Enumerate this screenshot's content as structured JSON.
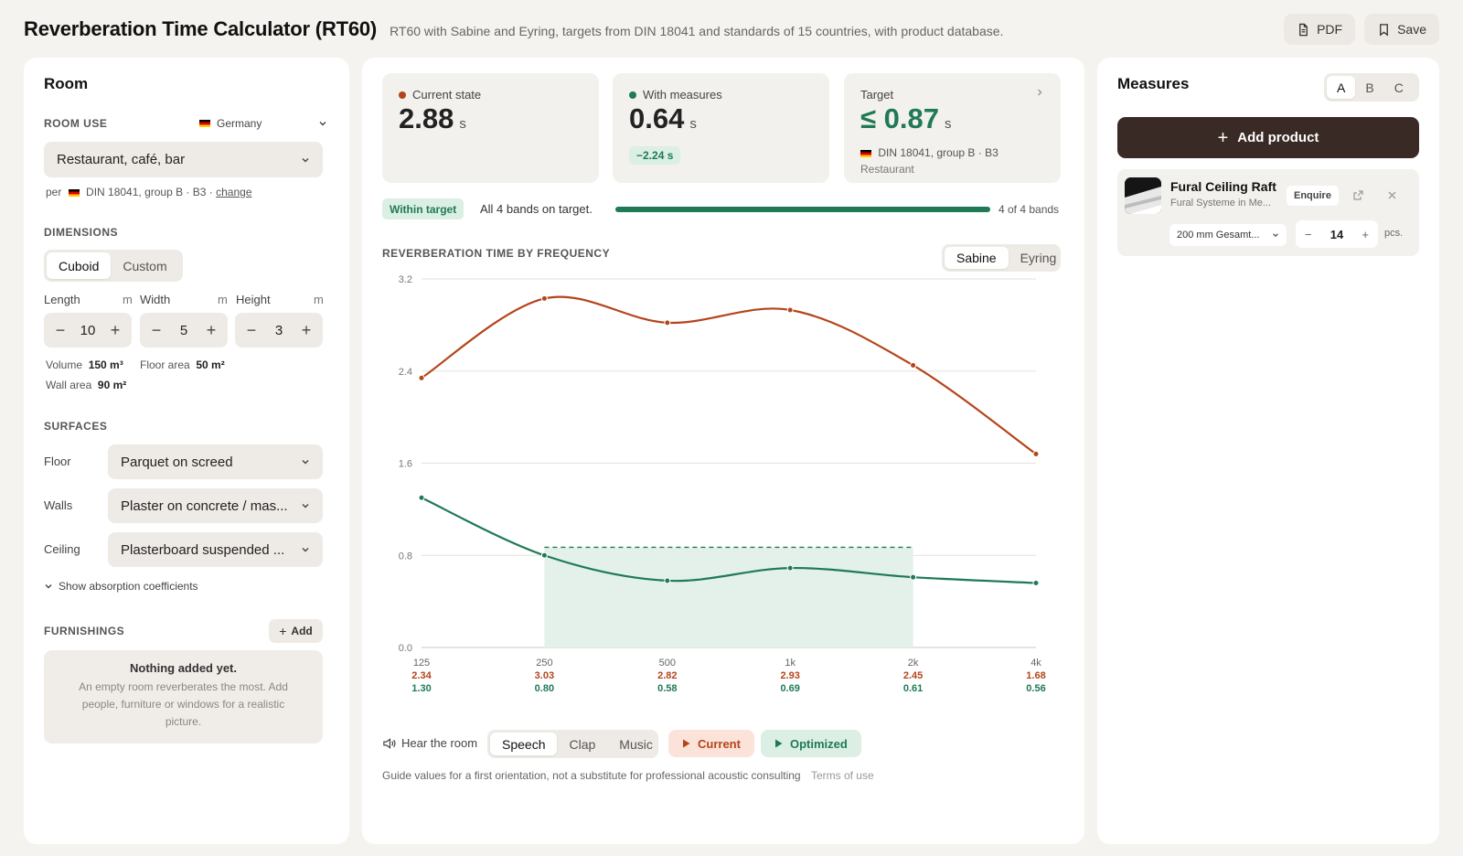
{
  "header": {
    "title": "Reverberation Time Calculator (RT60)",
    "subtitle": "RT60 with Sabine and Eyring, targets from DIN 18041 and standards of 15 countries, with product database.",
    "pdf_label": "PDF",
    "save_label": "Save"
  },
  "room": {
    "title": "Room",
    "room_use_label": "Room use",
    "country": "Germany",
    "use_value": "Restaurant, café, bar",
    "per_prefix": "per",
    "per_standard": "DIN 18041, group B · B3 ·",
    "change_link": "change",
    "dimensions_label": "Dimensions",
    "shape_options": [
      "Cuboid",
      "Custom"
    ],
    "length_label": "Length",
    "width_label": "Width",
    "height_label": "Height",
    "unit": "m",
    "length": "10",
    "width": "5",
    "height": "3",
    "volume_label": "Volume",
    "volume": "150 m³",
    "floor_area_label": "Floor area",
    "floor_area": "50 m²",
    "wall_area_label": "Wall area",
    "wall_area": "90 m²",
    "surfaces_label": "Surfaces",
    "floor_label": "Floor",
    "floor_value": "Parquet on screed",
    "walls_label": "Walls",
    "walls_value": "Plaster on concrete / mas...",
    "ceiling_label": "Ceiling",
    "ceiling_value": "Plasterboard suspended ...",
    "show_absorption": "Show absorption coefficients",
    "furnishings_label": "Furnishings",
    "add_label": "Add",
    "empty_title": "Nothing added yet.",
    "empty_text": "An empty room reverberates the most. Add people, furniture or windows for a realistic picture."
  },
  "summary": {
    "current_label": "Current state",
    "current_value": "2.88",
    "unit": "s",
    "measures_label": "With measures",
    "measures_value": "0.64",
    "delta": "−2.24 s",
    "target_label": "Target",
    "target_value": "≤ 0.87",
    "target_standard": "DIN 18041, group B · B3",
    "target_use": "Restaurant",
    "status_badge": "Within target",
    "status_text": "All 4 bands on target.",
    "bands_text": "4 of 4 bands",
    "bands_on_target": 4,
    "bands_total": 4
  },
  "chart_title": "Reverberation time by frequency",
  "method_options": [
    "Sabine",
    "Eyring"
  ],
  "chart_data": {
    "type": "line",
    "x": [
      "125",
      "250",
      "500",
      "1k",
      "2k",
      "4k"
    ],
    "series": [
      {
        "name": "Current",
        "values": [
          2.34,
          3.03,
          2.82,
          2.93,
          2.45,
          1.68
        ],
        "color": "#b5441a"
      },
      {
        "name": "Optimized",
        "values": [
          1.3,
          0.8,
          0.58,
          0.69,
          0.61,
          0.56
        ],
        "color": "#1f7a55"
      }
    ],
    "target_band": {
      "from": "250",
      "to": "2k",
      "max": 0.87
    },
    "yticks": [
      "3.2",
      "2.4",
      "1.6",
      "0.8",
      "0.0"
    ],
    "ylim": [
      0,
      3.2
    ],
    "grid": true
  },
  "labels_current": [
    "2.34",
    "3.03",
    "2.82",
    "2.93",
    "2.45",
    "1.68"
  ],
  "labels_optimized": [
    "1.30",
    "0.80",
    "0.58",
    "0.69",
    "0.61",
    "0.56"
  ],
  "audio": {
    "hear_label": "Hear the room",
    "sound_options": [
      "Speech",
      "Clap",
      "Music"
    ],
    "current_button": "Current",
    "optimized_button": "Optimized"
  },
  "footer": {
    "disclaimer": "Guide values for a first orientation, not a substitute for professional acoustic consulting",
    "terms": "Terms of use"
  },
  "measures": {
    "title": "Measures",
    "variants": [
      "A",
      "B",
      "C"
    ],
    "add_product": "Add product",
    "product": {
      "name": "Fural Ceiling Raft",
      "maker": "Fural Systeme in Me...",
      "enquire": "Enquire",
      "variant": "200 mm Gesamt...",
      "qty": "14",
      "unit": "pcs."
    }
  },
  "colors": {
    "current": "#b5441a",
    "optimized": "#1f7a55",
    "dark_button": "#3a2a25"
  }
}
